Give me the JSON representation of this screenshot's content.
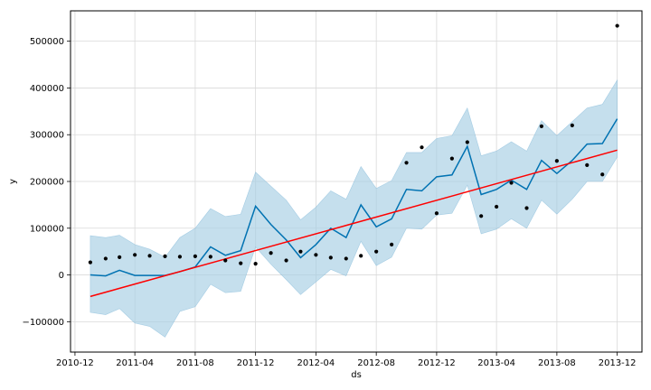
{
  "chart_data": {
    "type": "line",
    "title": "",
    "xlabel": "ds",
    "ylabel": "y",
    "grid": true,
    "colors": {
      "forecast": "#0072B2",
      "interval": "#a6cee3",
      "trend": "#ff0000",
      "actual": "#000000"
    },
    "xlim": [
      "2010-11-22",
      "2014-01-20"
    ],
    "ylim": [
      -165000,
      565000
    ],
    "x_ticks": [
      "2010-12",
      "2011-04",
      "2011-08",
      "2011-12",
      "2012-04",
      "2012-08",
      "2012-12",
      "2013-04",
      "2013-08",
      "2013-12"
    ],
    "y_ticks": [
      -100000,
      0,
      100000,
      200000,
      300000,
      400000,
      500000
    ],
    "y_tick_labels": [
      "−100000",
      "0",
      "100000",
      "200000",
      "300000",
      "400000",
      "500000"
    ],
    "dates": [
      "2011-01-01",
      "2011-02-01",
      "2011-03-01",
      "2011-04-01",
      "2011-05-01",
      "2011-06-01",
      "2011-07-01",
      "2011-08-01",
      "2011-09-01",
      "2011-10-01",
      "2011-11-01",
      "2011-12-01",
      "2012-01-01",
      "2012-02-01",
      "2012-03-01",
      "2012-04-01",
      "2012-05-01",
      "2012-06-01",
      "2012-07-01",
      "2012-08-01",
      "2012-09-01",
      "2012-10-01",
      "2012-11-01",
      "2012-12-01",
      "2013-01-01",
      "2013-02-01",
      "2013-03-01",
      "2013-04-01",
      "2013-05-01",
      "2013-06-01",
      "2013-07-01",
      "2013-08-01",
      "2013-09-01",
      "2013-10-01",
      "2013-11-01",
      "2013-12-01"
    ],
    "actual": [
      27000,
      35000,
      38000,
      43000,
      41000,
      40000,
      39000,
      40000,
      39000,
      31000,
      25000,
      24000,
      47000,
      31000,
      50000,
      43000,
      37000,
      35000,
      41000,
      50000,
      65000,
      240000,
      273000,
      132000,
      249000,
      284000,
      126000,
      146000,
      197000,
      143000,
      318000,
      244000,
      320000,
      235000,
      215000,
      533000
    ],
    "forecast": [
      0,
      -2000,
      10000,
      -1000,
      -1000,
      -1000,
      7000,
      17000,
      60000,
      42000,
      52000,
      147000,
      108000,
      75000,
      37000,
      65000,
      100000,
      80000,
      150000,
      103000,
      120000,
      183000,
      180000,
      210000,
      214000,
      275000,
      172000,
      183000,
      203000,
      183000,
      245000,
      217000,
      245000,
      280000,
      281000,
      334000
    ],
    "forecast_upper": [
      84000,
      80000,
      85000,
      65000,
      55000,
      38000,
      80000,
      100000,
      142000,
      125000,
      130000,
      220000,
      190000,
      160000,
      118000,
      145000,
      180000,
      162000,
      232000,
      185000,
      202000,
      262000,
      262000,
      292000,
      298000,
      357000,
      255000,
      265000,
      285000,
      265000,
      330000,
      298000,
      328000,
      357000,
      365000,
      417000
    ],
    "forecast_lower": [
      -80000,
      -85000,
      -72000,
      -103000,
      -110000,
      -133000,
      -78000,
      -68000,
      -20000,
      -38000,
      -35000,
      60000,
      23000,
      -10000,
      -42000,
      -15000,
      12000,
      -2000,
      72000,
      20000,
      38000,
      100000,
      98000,
      128000,
      132000,
      192000,
      88000,
      98000,
      120000,
      100000,
      160000,
      130000,
      162000,
      200000,
      200000,
      252000
    ],
    "trend": {
      "dates": [
        "2011-01-01",
        "2013-12-01"
      ],
      "values": [
        -46000,
        267000
      ]
    }
  }
}
